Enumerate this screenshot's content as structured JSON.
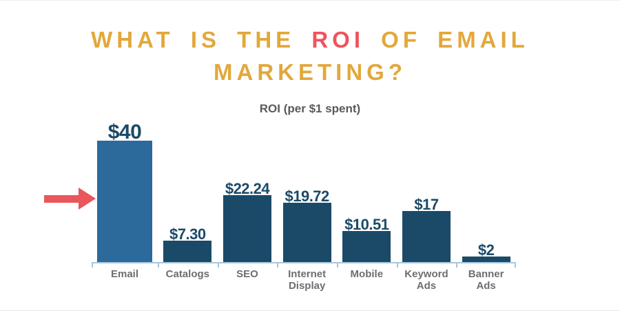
{
  "title": {
    "part1": "WHAT IS THE ",
    "highlight": "ROI",
    "part2": " OF EMAIL",
    "line2": "MARKETING?",
    "color": "#E2A83B",
    "highlight_color": "#EE545E"
  },
  "arrow": {
    "color": "#E9565C",
    "points_to": "Email"
  },
  "chart_data": {
    "type": "bar",
    "title": "ROI (per $1 spent)",
    "categories": [
      "Email",
      "Catalogs",
      "SEO",
      "Internet Display",
      "Mobile",
      "Keyword Ads",
      "Banner Ads"
    ],
    "values": [
      40,
      7.3,
      22.24,
      19.72,
      10.51,
      17,
      2
    ],
    "value_labels": [
      "$40",
      "$7.30",
      "$22.24",
      "$19.72",
      "$10.51",
      "$17",
      "$2"
    ],
    "xlabel": "",
    "ylabel": "",
    "ylim": [
      0,
      40
    ],
    "grid": false,
    "legend": "none",
    "highlight_index": 0,
    "bar_color": "#1B4A68",
    "highlight_bar_color": "#2B6A9B",
    "axis_color": "#A9C6DB",
    "label_color": "#6D6E71",
    "value_label_color": "#1B4A68",
    "title_color": "#595A5C"
  }
}
